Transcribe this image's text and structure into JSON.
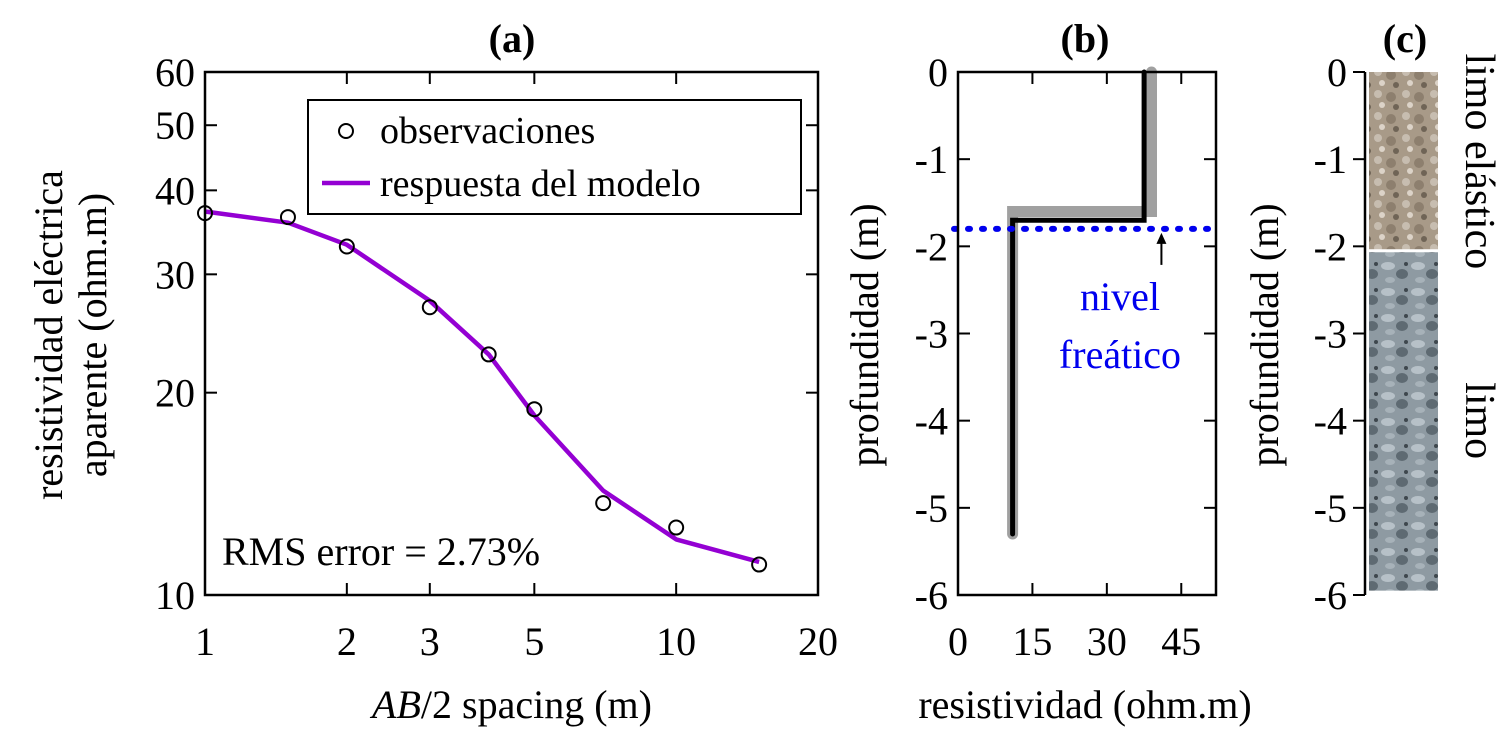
{
  "colors": {
    "model": "#9400D3",
    "water_table": "#0000EE",
    "true_model": "#A0A0A0",
    "inverted_model": "#000000",
    "soil_top": "#A89A88",
    "soil_bottom": "#8E9AA2"
  },
  "chart_data": [
    {
      "id": "a",
      "type": "scatter",
      "panel_label": "(a)",
      "xscale": "log",
      "yscale": "log",
      "xlim": [
        1,
        20
      ],
      "ylim": [
        10,
        60
      ],
      "xticks": [
        1,
        2,
        3,
        5,
        10,
        20
      ],
      "yticks": [
        10,
        20,
        30,
        40,
        50,
        60
      ],
      "xlabel_italic": "AB",
      "xlabel_rest": "/2 spacing (m)",
      "ylabel_line1": "resistividad eléctrica",
      "ylabel_line2": "aparente (ohm.m)",
      "legend": {
        "position": "top-right",
        "observations": "observaciones",
        "model": "respuesta del modelo"
      },
      "annotation": "RMS error = 2.73%",
      "series": [
        {
          "name": "observaciones",
          "kind": "markers",
          "x": [
            1,
            1.5,
            2,
            3,
            4,
            5,
            7,
            10,
            15
          ],
          "y": [
            37,
            36.5,
            33,
            26.8,
            22.8,
            18.9,
            13.7,
            12.6,
            11.1
          ]
        },
        {
          "name": "respuesta del modelo",
          "kind": "line",
          "x": [
            1,
            1.5,
            2,
            3,
            4,
            5,
            7,
            10,
            15
          ],
          "y": [
            37.2,
            35.8,
            33.2,
            27.4,
            22.8,
            18.5,
            14.3,
            12.1,
            11.2
          ]
        }
      ]
    },
    {
      "id": "b",
      "type": "line",
      "panel_label": "(b)",
      "xlim": [
        0,
        52
      ],
      "ylim": [
        -6,
        0
      ],
      "xticks": [
        0,
        15,
        30,
        45
      ],
      "yticks": [
        0,
        -1,
        -2,
        -3,
        -4,
        -5,
        -6
      ],
      "xlabel": "resistividad (ohm.m)",
      "ylabel": "profundidad (m)",
      "annotation_line1": "nivel",
      "annotation_line2": "freático",
      "water_table_depth": -1.8,
      "water_table_arrow_x": 41,
      "true_model": {
        "resistivity": [
          11,
          11,
          39,
          39
        ],
        "depth": [
          -5.3,
          -1.6,
          -1.6,
          0
        ]
      },
      "inverted_model": {
        "resistivity": [
          11,
          11,
          37.5,
          37.5
        ],
        "depth": [
          -5.3,
          -1.7,
          -1.7,
          0
        ]
      }
    },
    {
      "id": "c",
      "type": "table",
      "panel_label": "(c)",
      "ylim": [
        -6,
        0
      ],
      "yticks": [
        0,
        -1,
        -2,
        -3,
        -4,
        -5,
        -6
      ],
      "ylabel": "profundidad (m)",
      "layers": [
        {
          "name": "limo elástico",
          "top": 0,
          "bottom": -2.05
        },
        {
          "name": "limo",
          "top": -2.05,
          "bottom": -5.95
        }
      ]
    }
  ]
}
